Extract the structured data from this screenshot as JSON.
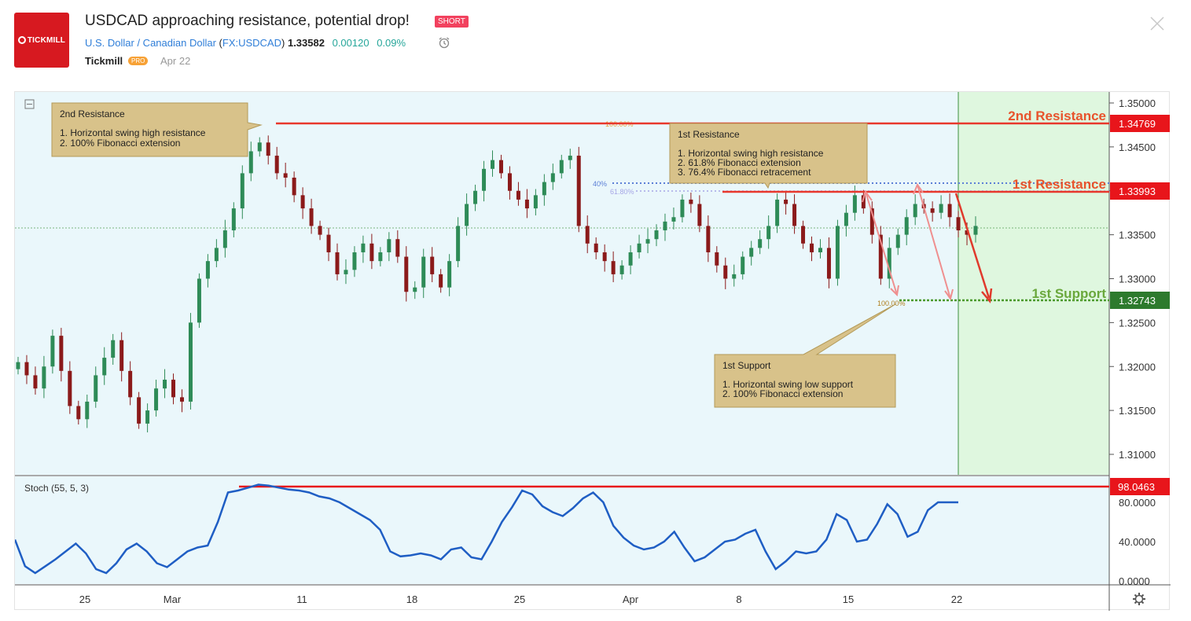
{
  "header": {
    "logo_text": "TICKMILL",
    "title": "USDCAD approaching resistance, potential drop!",
    "badge": "SHORT",
    "symbol_name": "U.S. Dollar / Canadian Dollar",
    "symbol_code": "FX:USDCAD",
    "price": "1.33582",
    "change": "0.00120",
    "change_pct": "0.09%",
    "author": "Tickmill",
    "author_badge": "PRO",
    "date": "Apr 22"
  },
  "chart_data": {
    "type": "candlestick",
    "symbol": "USDCAD",
    "price_axis_ticks": [
      "1.35000",
      "1.34500",
      "1.34000",
      "1.33500",
      "1.33000",
      "1.32500",
      "1.32000",
      "1.31500",
      "1.31000"
    ],
    "x_axis_ticks": [
      "25",
      "Mar",
      "11",
      "18",
      "25",
      "Apr",
      "8",
      "15",
      "22"
    ],
    "levels": [
      {
        "label": "2nd Resistance",
        "value": "1.34769",
        "color": "#e8382c"
      },
      {
        "label": "1st Resistance",
        "value": "1.33993",
        "color": "#e8382c"
      },
      {
        "label": "1st Support",
        "value": "1.32743",
        "color": "#4a9a2c"
      }
    ],
    "fib_labels": [
      "100.00%",
      "40%",
      "61.80%",
      "100.00%"
    ],
    "annotations": [
      {
        "title": "2nd Resistance",
        "lines": [
          "1. Horizontal swing high resistance",
          "2. 100% Fibonacci extension"
        ]
      },
      {
        "title": "1st Resistance",
        "lines": [
          "1. Horizontal swing high resistance",
          "2. 61.8% Fibonacci extension",
          "3. 76.4% Fibonacci retracement"
        ]
      },
      {
        "title": "1st Support",
        "lines": [
          "1. Horizontal swing low support",
          "2. 100% Fibonacci extension"
        ]
      }
    ],
    "current_price": 1.33582,
    "close_series": [
      1.3205,
      1.319,
      1.3175,
      1.32,
      1.3235,
      1.3195,
      1.3155,
      1.314,
      1.316,
      1.319,
      1.321,
      1.323,
      1.3195,
      1.3165,
      1.3135,
      1.315,
      1.3175,
      1.3185,
      1.3165,
      1.316,
      1.325,
      1.33,
      1.332,
      1.3335,
      1.3355,
      1.338,
      1.342,
      1.3445,
      1.3455,
      1.344,
      1.342,
      1.3415,
      1.3395,
      1.338,
      1.336,
      1.335,
      1.333,
      1.3305,
      1.331,
      1.333,
      1.334,
      1.332,
      1.333,
      1.3345,
      1.3325,
      1.3285,
      1.329,
      1.3325,
      1.3305,
      1.329,
      1.332,
      1.336,
      1.3385,
      1.34,
      1.3425,
      1.3435,
      1.342,
      1.34,
      1.339,
      1.338,
      1.3395,
      1.341,
      1.342,
      1.3435,
      1.344,
      1.336,
      1.334,
      1.333,
      1.332,
      1.3305,
      1.3315,
      1.333,
      1.334,
      1.3345,
      1.3355,
      1.3365,
      1.337,
      1.339,
      1.3385,
      1.336,
      1.333,
      1.3315,
      1.33,
      1.3305,
      1.3325,
      1.3335,
      1.3345,
      1.336,
      1.339,
      1.3385,
      1.336,
      1.334,
      1.333,
      1.3335,
      1.33,
      1.336,
      1.3375,
      1.3395,
      1.338,
      1.335,
      1.33,
      1.3335,
      1.335,
      1.337,
      1.3385,
      1.338,
      1.3375,
      1.3385,
      1.337,
      1.3355,
      1.335,
      1.336
    ],
    "stoch": {
      "label": "Stoch (55, 5, 3)",
      "ticks": [
        "80.0000",
        "40.0000",
        "0.0000"
      ],
      "level_label": "98.0463",
      "values": [
        42,
        15,
        8,
        15,
        22,
        30,
        38,
        28,
        12,
        8,
        18,
        32,
        38,
        30,
        18,
        14,
        22,
        30,
        34,
        36,
        60,
        90,
        92,
        95,
        98,
        97,
        95,
        93,
        92,
        90,
        86,
        84,
        80,
        74,
        68,
        62,
        52,
        30,
        25,
        26,
        28,
        26,
        22,
        32,
        34,
        24,
        22,
        40,
        60,
        75,
        92,
        88,
        76,
        70,
        66,
        74,
        84,
        90,
        80,
        56,
        44,
        36,
        32,
        34,
        40,
        50,
        34,
        20,
        24,
        32,
        40,
        42,
        48,
        52,
        30,
        12,
        20,
        30,
        28,
        30,
        42,
        68,
        62,
        40,
        42,
        58,
        78,
        68,
        45,
        50,
        72,
        80,
        80,
        80
      ],
      "ylim": [
        0,
        100
      ]
    }
  },
  "toolbar": {
    "collapse_icon": "minus-square-icon",
    "settings_icon": "gear-icon",
    "alarm_icon": "alarm-clock-icon",
    "close_icon": "close-icon"
  }
}
